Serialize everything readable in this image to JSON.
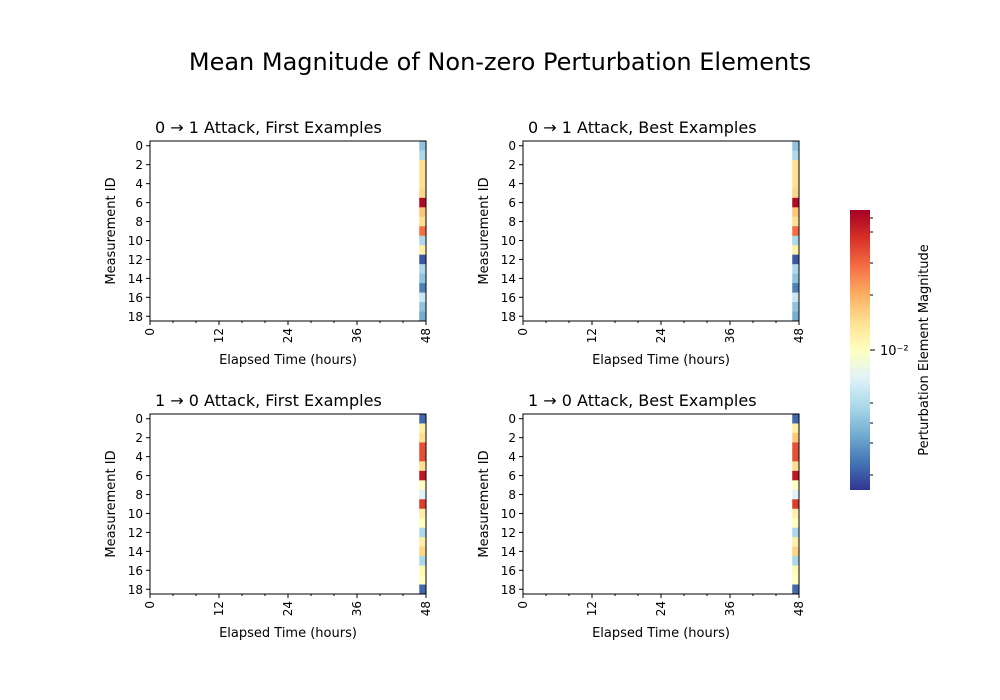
{
  "figure_title": "Mean Magnitude of Non-zero Perturbation Elements",
  "colorbar": {
    "label": "Perturbation Element Magnitude",
    "tick_label": "10⁻²",
    "colormap": "RdYlBu_r",
    "scale": "log"
  },
  "chart_data": [
    {
      "type": "heatmap",
      "title": "0 → 1 Attack, First Examples",
      "xlabel": "Elapsed Time (hours)",
      "ylabel": "Measurement ID",
      "xlim": [
        0,
        48
      ],
      "x_ticks": [
        "0",
        "12",
        "24",
        "36",
        "48"
      ],
      "y_ticks": [
        "0",
        "2",
        "4",
        "6",
        "8",
        "10",
        "12",
        "14",
        "16",
        "18"
      ],
      "rows": 19,
      "nonzero_column": "48",
      "values_norm": [
        0.25,
        0.3,
        0.6,
        0.6,
        0.6,
        0.62,
        0.98,
        0.65,
        0.6,
        0.8,
        0.3,
        0.55,
        0.05,
        0.3,
        0.25,
        0.12,
        0.35,
        0.25,
        0.2
      ]
    },
    {
      "type": "heatmap",
      "title": "0 → 1 Attack, Best Examples",
      "xlabel": "Elapsed Time (hours)",
      "ylabel": "Measurement ID",
      "xlim": [
        0,
        48
      ],
      "x_ticks": [
        "0",
        "12",
        "24",
        "36",
        "48"
      ],
      "y_ticks": [
        "0",
        "2",
        "4",
        "6",
        "8",
        "10",
        "12",
        "14",
        "16",
        "18"
      ],
      "rows": 19,
      "nonzero_column": "48",
      "values_norm": [
        0.25,
        0.3,
        0.6,
        0.6,
        0.6,
        0.62,
        0.98,
        0.65,
        0.6,
        0.8,
        0.3,
        0.55,
        0.05,
        0.3,
        0.25,
        0.12,
        0.35,
        0.25,
        0.2
      ]
    },
    {
      "type": "heatmap",
      "title": "1 → 0 Attack, First Examples",
      "xlabel": "Elapsed Time (hours)",
      "ylabel": "Measurement ID",
      "xlim": [
        0,
        48
      ],
      "x_ticks": [
        "0",
        "12",
        "24",
        "36",
        "48"
      ],
      "y_ticks": [
        "0",
        "2",
        "4",
        "6",
        "8",
        "10",
        "12",
        "14",
        "16",
        "18"
      ],
      "rows": 19,
      "nonzero_column": "48",
      "values_norm": [
        0.08,
        0.55,
        0.6,
        0.85,
        0.85,
        0.6,
        0.95,
        0.5,
        0.4,
        0.88,
        0.55,
        0.5,
        0.3,
        0.55,
        0.62,
        0.3,
        0.52,
        0.5,
        0.08
      ]
    },
    {
      "type": "heatmap",
      "title": "1 → 0 Attack, Best Examples",
      "xlabel": "Elapsed Time (hours)",
      "ylabel": "Measurement ID",
      "xlim": [
        0,
        48
      ],
      "x_ticks": [
        "0",
        "12",
        "24",
        "36",
        "48"
      ],
      "y_ticks": [
        "0",
        "2",
        "4",
        "6",
        "8",
        "10",
        "12",
        "14",
        "16",
        "18"
      ],
      "rows": 19,
      "nonzero_column": "48",
      "values_norm": [
        0.08,
        0.55,
        0.65,
        0.85,
        0.85,
        0.6,
        0.95,
        0.5,
        0.4,
        0.88,
        0.55,
        0.5,
        0.3,
        0.55,
        0.62,
        0.3,
        0.52,
        0.5,
        0.08
      ]
    }
  ]
}
